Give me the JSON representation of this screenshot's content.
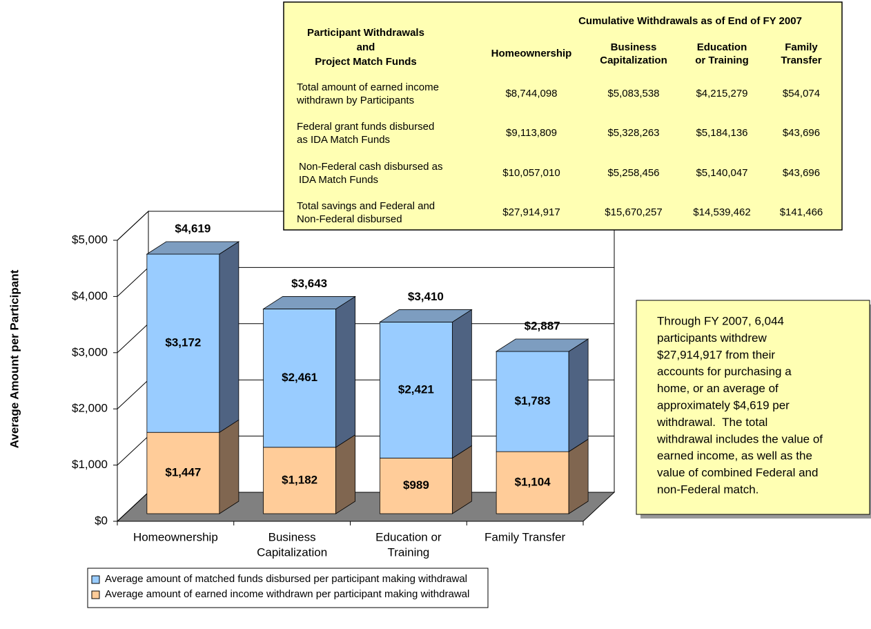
{
  "chart_data": {
    "type": "bar",
    "stacked": true,
    "y_label": "Average Amount per Participant",
    "categories": [
      [
        "Homeownership"
      ],
      [
        "Business",
        "Capitalization"
      ],
      [
        "Education or",
        "Training"
      ],
      [
        "Family Transfer"
      ]
    ],
    "series": [
      {
        "name": "Average amount of earned income withdrawn per participant making withdrawal",
        "color": "#FFCC99",
        "side_color": "#806650",
        "top_color": "#C9A27C",
        "values": [
          1447,
          1182,
          989,
          1104
        ],
        "value_labels": [
          "$1,447",
          "$1,182",
          "$989",
          "$1,104"
        ]
      },
      {
        "name": "Average amount of matched funds disbursed per participant making withdrawal",
        "color": "#99CCFF",
        "side_color": "#4F6382",
        "top_color": "#7D9DC0",
        "values": [
          3172,
          2461,
          2421,
          1783
        ],
        "value_labels": [
          "$3,172",
          "$2,461",
          "$2,421",
          "$1,783"
        ]
      }
    ],
    "legend_order": [
      1,
      0
    ],
    "totals": {
      "values": [
        4619,
        3643,
        3410,
        2887
      ],
      "value_labels": [
        "$4,619",
        "$3,643",
        "$3,410",
        "$2,887"
      ]
    },
    "ylim": [
      0,
      5000
    ],
    "yticks": [
      {
        "value": 0,
        "label": "$0"
      },
      {
        "value": 1000,
        "label": "$1,000"
      },
      {
        "value": 2000,
        "label": "$2,000"
      },
      {
        "value": 3000,
        "label": "$3,000"
      },
      {
        "value": 4000,
        "label": "$4,000"
      },
      {
        "value": 5000,
        "label": "$5,000"
      }
    ],
    "grid": true,
    "floor_color": "#808080"
  },
  "table": {
    "title": "Cumulative Withdrawals as of End of FY 2007",
    "corner": [
      "Participant Withdrawals",
      "and",
      "Project Match Funds"
    ],
    "columns": [
      [
        "Homeownership"
      ],
      [
        "Business",
        "Capitalization"
      ],
      [
        "Education",
        "or Training"
      ],
      [
        "Family",
        "Transfer"
      ]
    ],
    "rows": [
      {
        "label": [
          "Total amount of earned income",
          "withdrawn by Participants"
        ],
        "cells": [
          "$8,744,098",
          "$5,083,538",
          "$4,215,279",
          "$54,074"
        ]
      },
      {
        "label": [
          "Federal grant funds disbursed",
          "as IDA Match Funds"
        ],
        "cells": [
          "$9,113,809",
          "$5,328,263",
          "$5,184,136",
          "$43,696"
        ]
      },
      {
        "label": [
          "Non-Federal cash disbursed as",
          "IDA Match Funds"
        ],
        "cells": [
          "$10,057,010",
          "$5,258,456",
          "$5,140,047",
          "$43,696"
        ]
      },
      {
        "label": [
          "Total savings and Federal and",
          "Non-Federal disbursed"
        ],
        "cells": [
          "$27,914,917",
          "$15,670,257",
          "$14,539,462",
          "$141,466"
        ]
      }
    ]
  },
  "note": [
    "Through FY 2007, 6,044",
    "participants withdrew",
    "$27,914,917 from their",
    "accounts for purchasing a",
    "home, or an average of",
    "approximately $4,619 per",
    "withdrawal.  The total",
    "withdrawal includes the value of",
    "earned income, as well as the",
    "value of combined Federal and",
    "non-Federal match."
  ]
}
